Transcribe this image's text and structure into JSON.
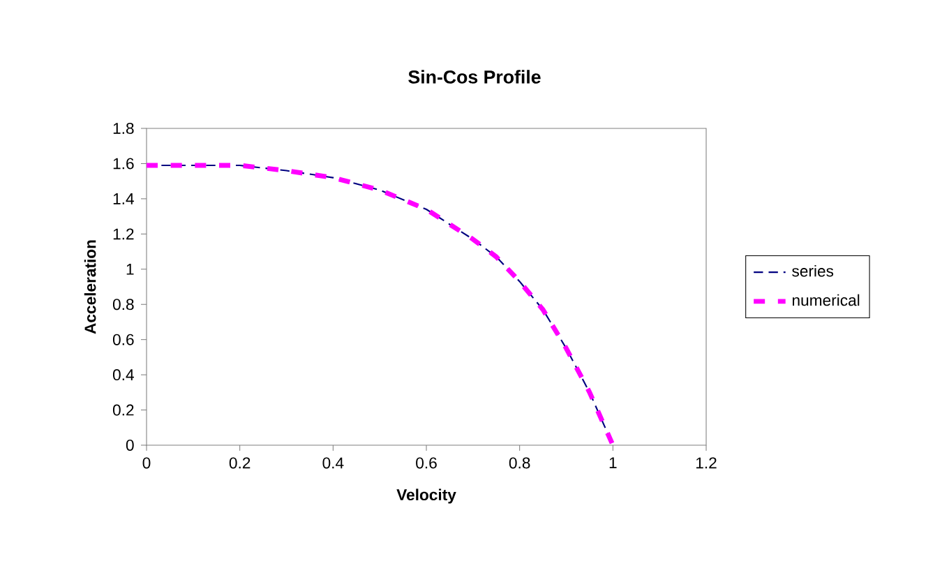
{
  "chart_data": {
    "type": "line",
    "title": "Sin-Cos Profile",
    "xlabel": "Velocity",
    "ylabel": "Acceleration",
    "x": [
      0,
      0.1,
      0.2,
      0.3,
      0.4,
      0.5,
      0.6,
      0.7,
      0.75,
      0.8,
      0.85,
      0.9,
      0.95,
      1.0
    ],
    "series": [
      {
        "name": "series",
        "color": "#000080",
        "line_style": "dashed",
        "values": [
          1.59,
          1.59,
          1.59,
          1.56,
          1.52,
          1.45,
          1.34,
          1.17,
          1.07,
          0.93,
          0.77,
          0.55,
          0.3,
          0
        ]
      },
      {
        "name": "numerical",
        "color": "#ff00ff",
        "line_style": "dashed",
        "values": [
          1.59,
          1.59,
          1.59,
          1.56,
          1.52,
          1.45,
          1.34,
          1.17,
          1.07,
          0.93,
          0.77,
          0.55,
          0.3,
          0
        ]
      }
    ],
    "xlim": [
      0,
      1.2
    ],
    "xticks": [
      0,
      0.2,
      0.4,
      0.6,
      0.8,
      1,
      1.2
    ],
    "ylim": [
      0,
      1.8
    ],
    "yticks": [
      0,
      0.2,
      0.4,
      0.6,
      0.8,
      1,
      1.2,
      1.4,
      1.6,
      1.8
    ],
    "grid": false,
    "legend": "right",
    "marker": "none"
  }
}
